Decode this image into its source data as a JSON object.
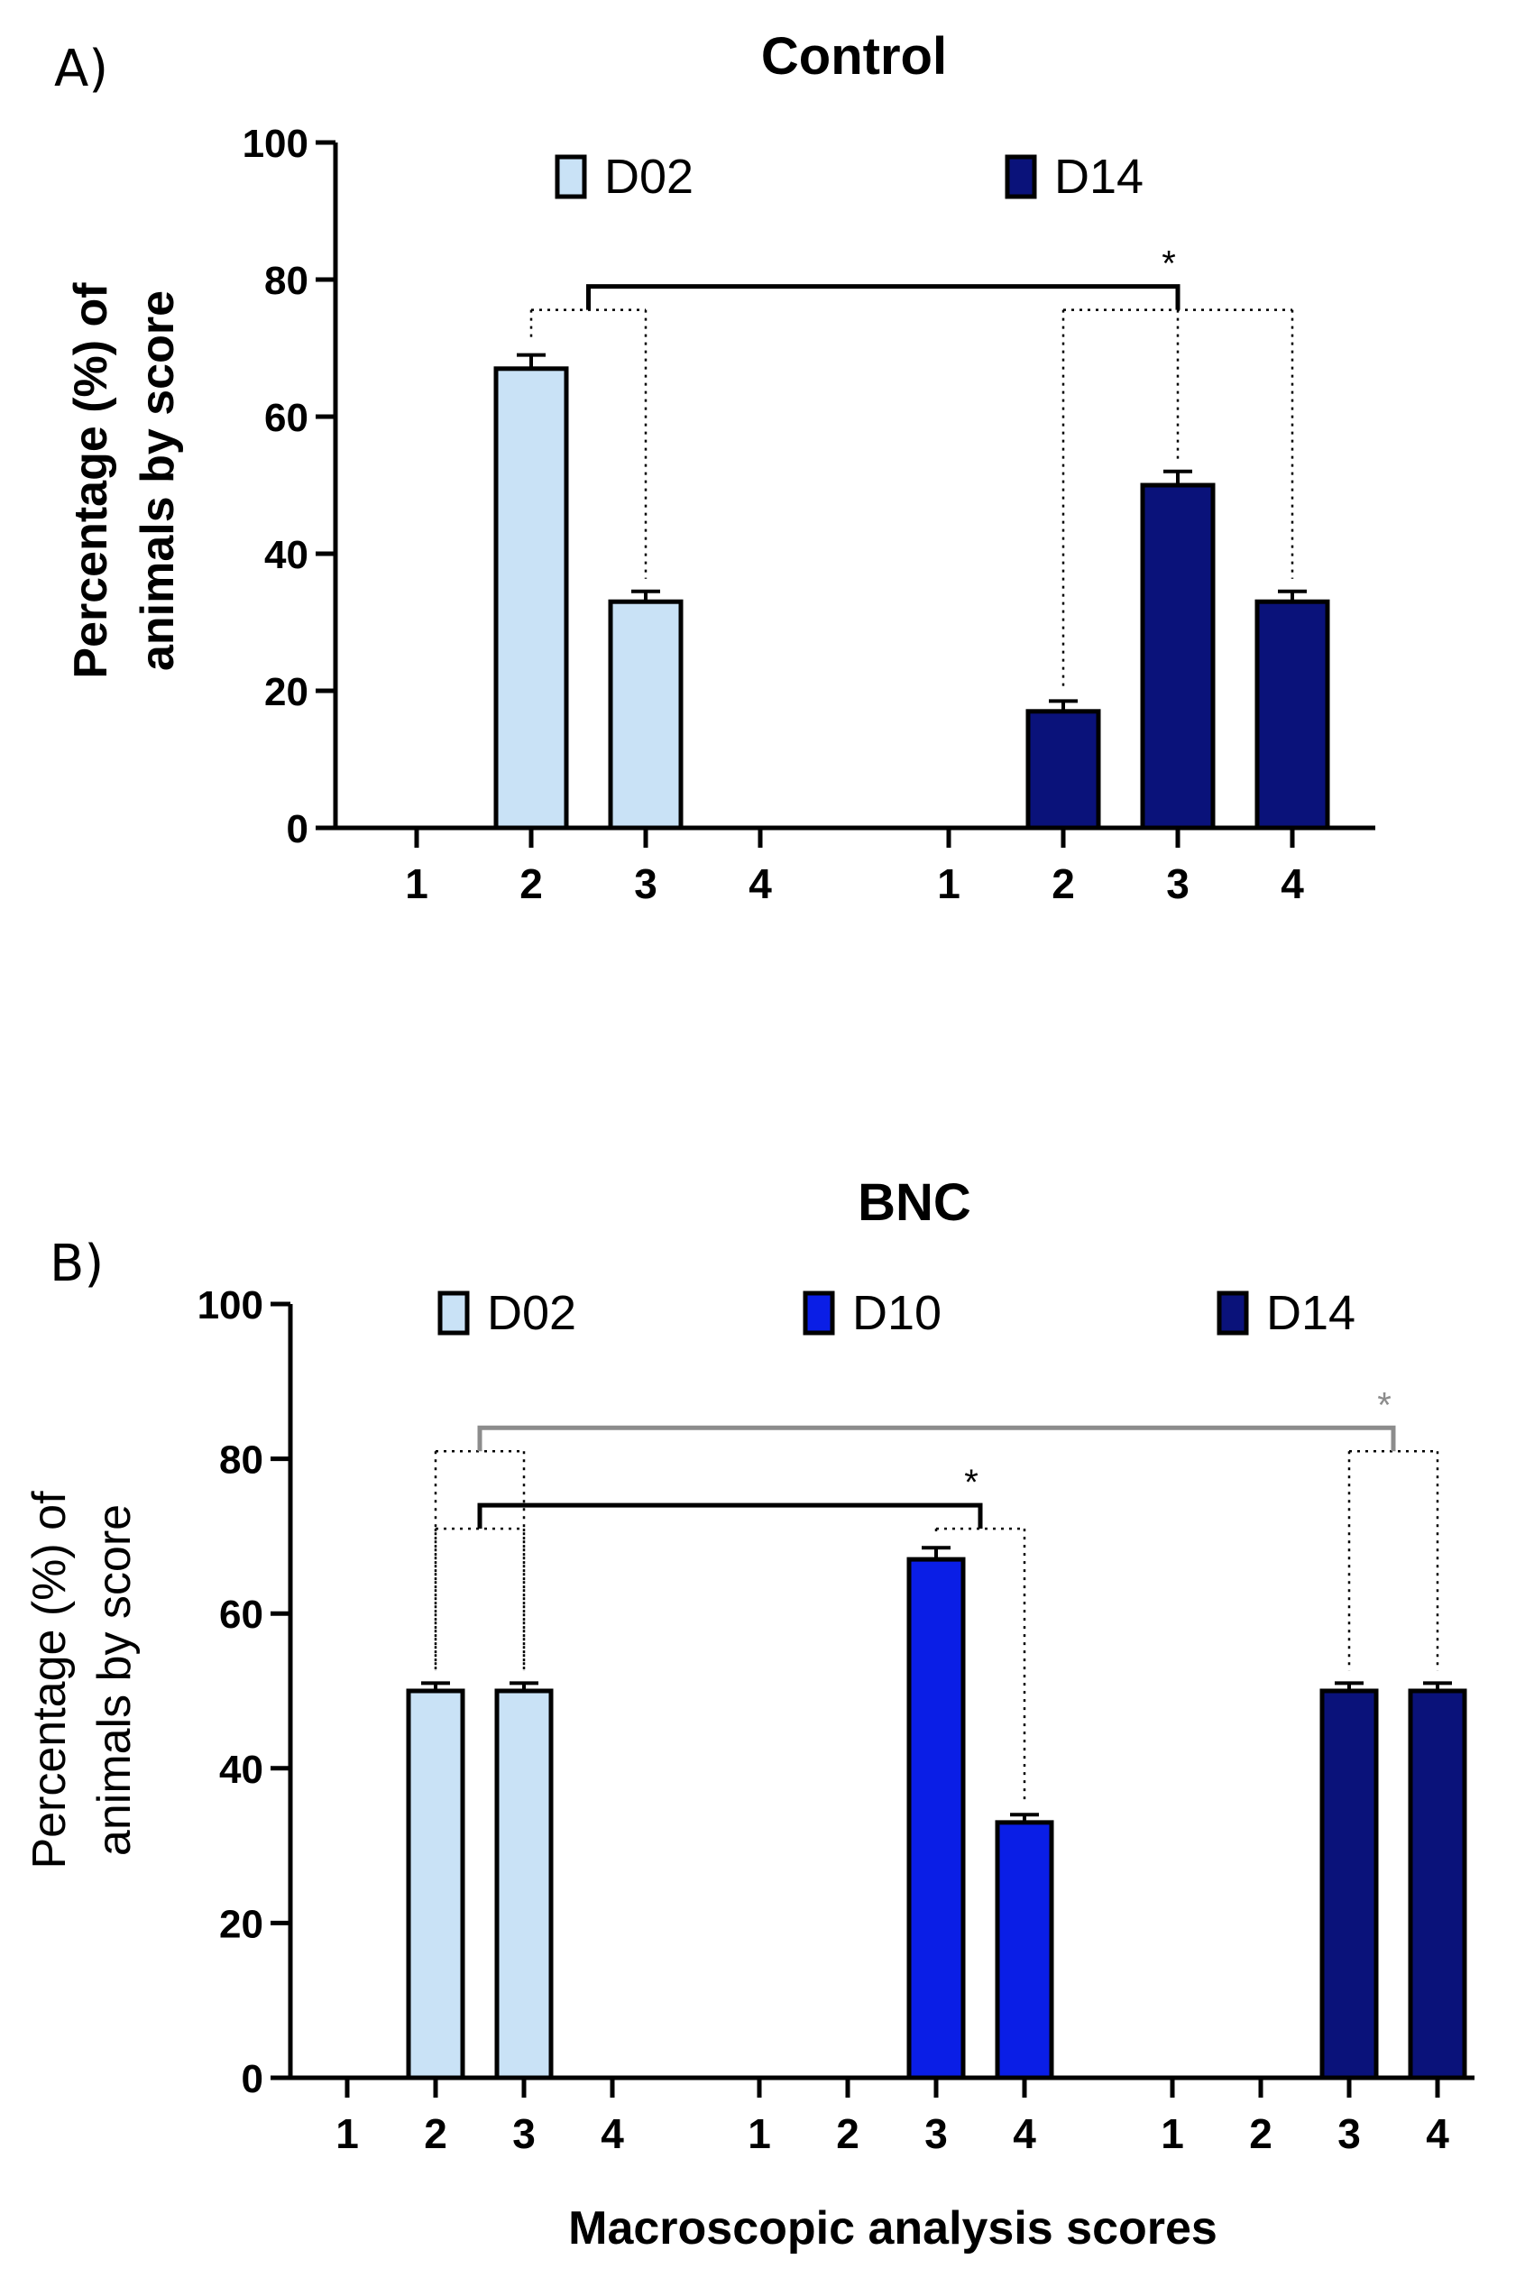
{
  "figure": {
    "xlabel": "Macroscopic analysis scores"
  },
  "colors": {
    "D02": "#c9e2f6",
    "D10": "#0a1ee6",
    "D14": "#0a127a",
    "axis": "#000000",
    "sig_gray": "#8c8c8c"
  },
  "chart_data": [
    {
      "type": "bar",
      "panel_label": "A)",
      "title": "Control",
      "ylabel_lines": [
        "Percentage (%) of",
        "animals by score"
      ],
      "xlabel": "",
      "ylim": [
        0,
        100
      ],
      "yticks": [
        0,
        20,
        40,
        60,
        80,
        100
      ],
      "categories": [
        "1",
        "2",
        "3",
        "4"
      ],
      "series": [
        {
          "name": "D02",
          "values": [
            0,
            67,
            33,
            0
          ],
          "errors": [
            0,
            2,
            1.5,
            0
          ]
        },
        {
          "name": "D14",
          "values": [
            0,
            17,
            50,
            33
          ],
          "errors": [
            0,
            1.5,
            2,
            1.5
          ]
        }
      ],
      "annotations": [
        {
          "text": "*",
          "from_series": "D02",
          "to_series": "D14",
          "level": 79,
          "color": "black"
        }
      ]
    },
    {
      "type": "bar",
      "panel_label": "B)",
      "title": "BNC",
      "ylabel_lines": [
        "Percentage (%) of",
        "animals by score"
      ],
      "xlabel": "Macroscopic analysis scores",
      "ylim": [
        0,
        100
      ],
      "yticks": [
        0,
        20,
        40,
        60,
        80,
        100
      ],
      "categories": [
        "1",
        "2",
        "3",
        "4"
      ],
      "series": [
        {
          "name": "D02",
          "values": [
            0,
            50,
            50,
            0
          ],
          "errors": [
            0,
            1,
            1,
            0
          ]
        },
        {
          "name": "D10",
          "values": [
            0,
            0,
            67,
            33
          ],
          "errors": [
            0,
            0,
            1.5,
            1
          ]
        },
        {
          "name": "D14",
          "values": [
            0,
            0,
            50,
            50
          ],
          "errors": [
            0,
            0,
            1,
            1
          ]
        }
      ],
      "annotations": [
        {
          "text": "*",
          "from_series": "D02",
          "to_series": "D10",
          "level": 74,
          "color": "black"
        },
        {
          "text": "*",
          "from_series": "D02",
          "to_series": "D14",
          "level": 84,
          "color": "gray"
        }
      ]
    }
  ]
}
